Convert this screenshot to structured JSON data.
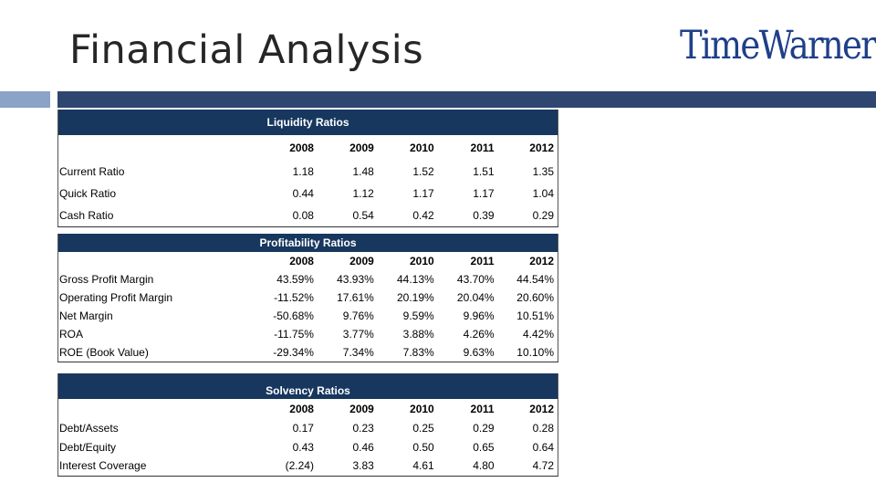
{
  "slide": {
    "title": "Financial Analysis",
    "logo_text": "TimeWarner",
    "accent_colors": {
      "bar_light": "#8aa3c7",
      "bar_dark": "#2e4670",
      "table_header": "#17375e",
      "logo": "#1f3f8a"
    }
  },
  "liquidity": {
    "title": "Liquidity Ratios",
    "years": [
      "2008",
      "2009",
      "2010",
      "2011",
      "2012"
    ],
    "rows": [
      {
        "label": "Current Ratio",
        "values": [
          "1.18",
          "1.48",
          "1.52",
          "1.51",
          "1.35"
        ]
      },
      {
        "label": "Quick Ratio",
        "values": [
          "0.44",
          "1.12",
          "1.17",
          "1.17",
          "1.04"
        ]
      },
      {
        "label": "Cash Ratio",
        "values": [
          "0.08",
          "0.54",
          "0.42",
          "0.39",
          "0.29"
        ]
      }
    ]
  },
  "profitability": {
    "title": "Profitability Ratios",
    "years": [
      "2008",
      "2009",
      "2010",
      "2011",
      "2012"
    ],
    "rows": [
      {
        "label": "Gross Profit Margin",
        "values": [
          "43.59%",
          "43.93%",
          "44.13%",
          "43.70%",
          "44.54%"
        ]
      },
      {
        "label": "Operating Profit Margin",
        "values": [
          "-11.52%",
          "17.61%",
          "20.19%",
          "20.04%",
          "20.60%"
        ]
      },
      {
        "label": "Net Margin",
        "values": [
          "-50.68%",
          "9.76%",
          "9.59%",
          "9.96%",
          "10.51%"
        ]
      },
      {
        "label": "ROA",
        "values": [
          "-11.75%",
          "3.77%",
          "3.88%",
          "4.26%",
          "4.42%"
        ]
      },
      {
        "label": "ROE (Book Value)",
        "values": [
          "-29.34%",
          "7.34%",
          "7.83%",
          "9.63%",
          "10.10%"
        ]
      }
    ]
  },
  "solvency": {
    "title": "Solvency Ratios",
    "years": [
      "2008",
      "2009",
      "2010",
      "2011",
      "2012"
    ],
    "rows": [
      {
        "label": "Debt/Assets",
        "values": [
          "0.17",
          "0.23",
          "0.25",
          "0.29",
          "0.28"
        ]
      },
      {
        "label": "Debt/Equity",
        "values": [
          "0.43",
          "0.46",
          "0.50",
          "0.65",
          "0.64"
        ]
      },
      {
        "label": "Interest Coverage",
        "values": [
          "(2.24)",
          "3.83",
          "4.61",
          "4.80",
          "4.72"
        ]
      }
    ]
  }
}
